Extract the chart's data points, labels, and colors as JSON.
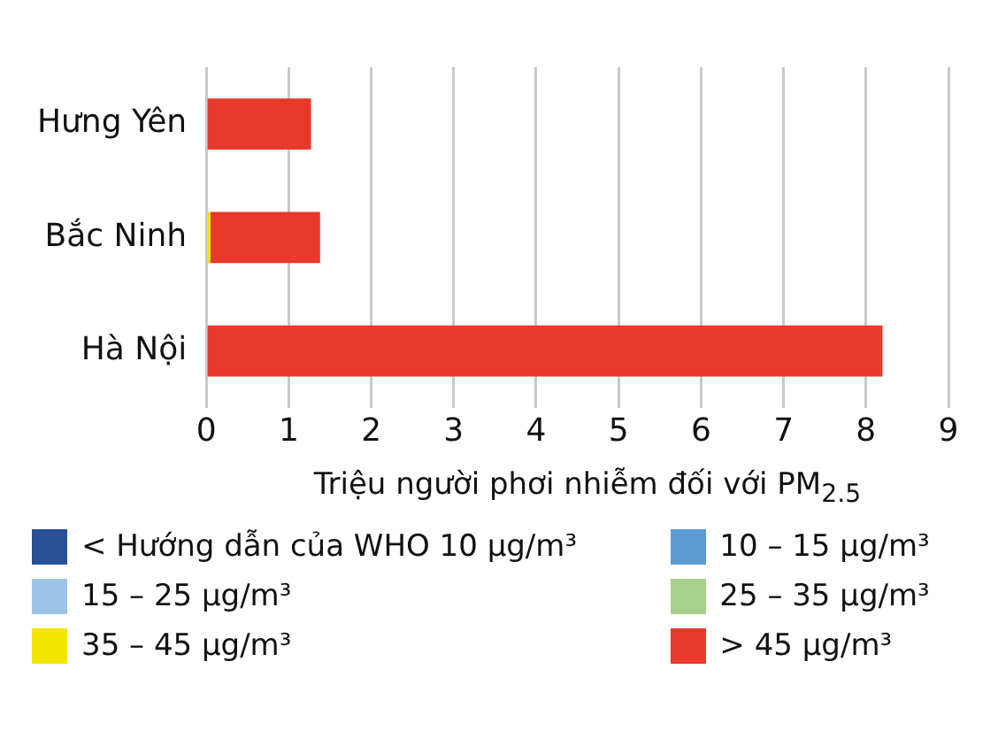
{
  "chart_data": {
    "type": "bar",
    "orientation": "horizontal",
    "stacked": true,
    "categories": [
      "Hưng Yên",
      "Bắc Ninh",
      "Hà Nội"
    ],
    "xlabel": "Triệu người phơi nhiễm đối với PM$_{2.5}$",
    "xlim": [
      0,
      9
    ],
    "xticks": [
      0,
      1,
      2,
      3,
      4,
      5,
      6,
      7,
      8,
      9
    ],
    "grid": "x",
    "legend": "bottom",
    "series": [
      {
        "name": "< Hướng dẫn của WHO 10 µg/m³",
        "color": "#2a4f96",
        "values": [
          null,
          null,
          null
        ]
      },
      {
        "name": "10 – 15 µg/m³",
        "color": "#5b9bd5",
        "values": [
          null,
          null,
          null
        ]
      },
      {
        "name": "15 – 25 µg/m³",
        "color": "#9dc3e6",
        "values": [
          null,
          null,
          null
        ]
      },
      {
        "name": "25 – 35 µg/m³",
        "color": "#a9d18e",
        "values": [
          null,
          null,
          null
        ]
      },
      {
        "name": "35 – 45 µg/m³",
        "color": "#f2e500",
        "values": [
          null,
          0.05,
          null
        ]
      },
      {
        "name": "> 45 µg/m³",
        "color": "#e8392a",
        "values": [
          1.27,
          1.33,
          8.2
        ]
      }
    ]
  }
}
